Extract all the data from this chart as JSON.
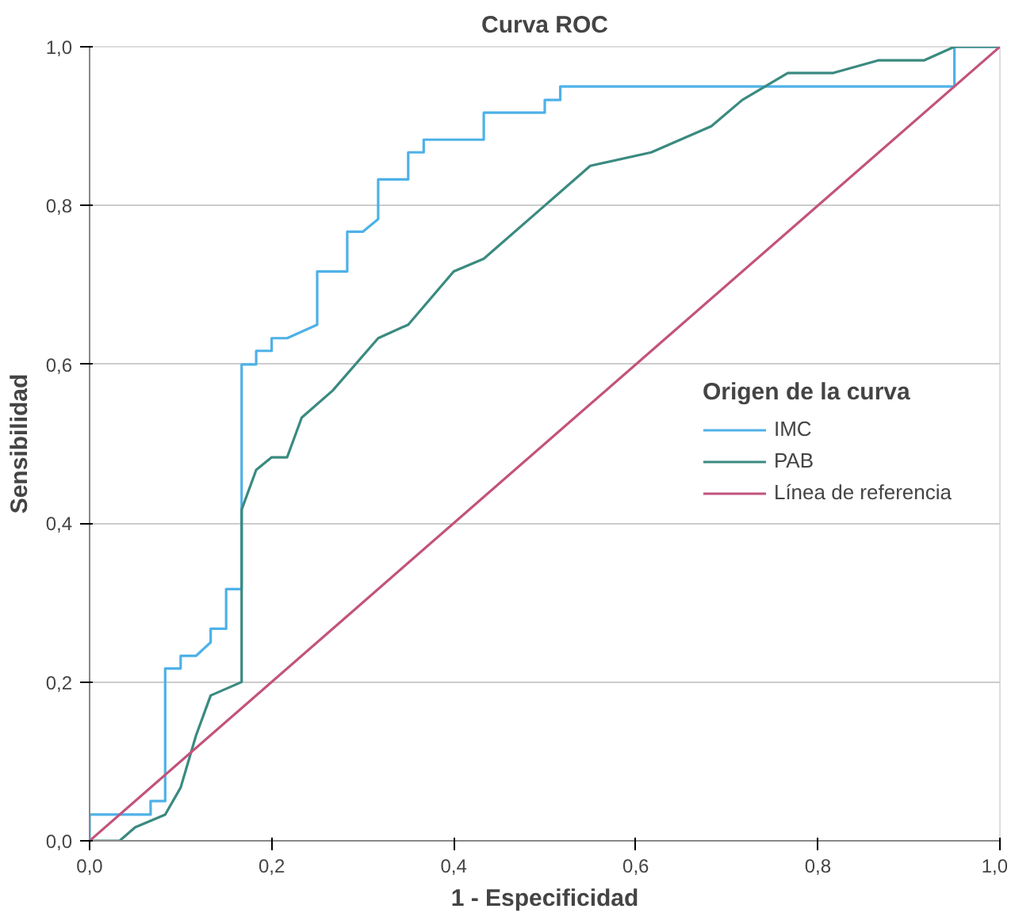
{
  "chart_data": {
    "type": "line",
    "title": "Curva ROC",
    "xlabel": "1 - Especificidad",
    "ylabel": "Sensibilidad",
    "legend_title": "Origen de la curva",
    "series": [
      {
        "name": "IMC",
        "color": "#4eb1e8",
        "x": [
          0,
          0,
          0.067,
          0.067,
          0.083,
          0.083,
          0.1,
          0.1,
          0.117,
          0.133,
          0.133,
          0.15,
          0.15,
          0.167,
          0.167,
          0.183,
          0.183,
          0.2,
          0.2,
          0.217,
          0.25,
          0.25,
          0.283,
          0.283,
          0.3,
          0.317,
          0.317,
          0.35,
          0.35,
          0.367,
          0.367,
          0.433,
          0.433,
          0.5,
          0.5,
          0.517,
          0.517,
          0.95,
          0.95,
          1.0
        ],
        "values": [
          0,
          0.033,
          0.033,
          0.05,
          0.05,
          0.217,
          0.217,
          0.233,
          0.233,
          0.25,
          0.267,
          0.267,
          0.317,
          0.317,
          0.6,
          0.6,
          0.617,
          0.617,
          0.633,
          0.633,
          0.65,
          0.717,
          0.717,
          0.767,
          0.767,
          0.783,
          0.833,
          0.833,
          0.867,
          0.867,
          0.883,
          0.883,
          0.917,
          0.917,
          0.933,
          0.933,
          0.95,
          0.95,
          1.0,
          1.0
        ]
      },
      {
        "name": "PAB",
        "color": "#3a8a80",
        "x": [
          0,
          0.033,
          0.05,
          0.083,
          0.1,
          0.117,
          0.133,
          0.167,
          0.167,
          0.183,
          0.2,
          0.217,
          0.233,
          0.267,
          0.317,
          0.35,
          0.4,
          0.433,
          0.5,
          0.55,
          0.617,
          0.683,
          0.717,
          0.767,
          0.817,
          0.867,
          0.917,
          0.95,
          1.0
        ],
        "values": [
          0,
          0,
          0.017,
          0.033,
          0.067,
          0.133,
          0.183,
          0.2,
          0.417,
          0.467,
          0.483,
          0.483,
          0.533,
          0.567,
          0.633,
          0.65,
          0.717,
          0.733,
          0.8,
          0.85,
          0.867,
          0.9,
          0.933,
          0.967,
          0.967,
          0.983,
          0.983,
          1.0,
          1.0
        ]
      },
      {
        "name": "Línea de referencia",
        "color": "#c2537c",
        "x": [
          0,
          1
        ],
        "values": [
          0,
          1
        ]
      }
    ],
    "xlim": [
      0,
      1
    ],
    "ylim": [
      0,
      1
    ],
    "xticks": [
      {
        "value": 0,
        "label": "0,0"
      },
      {
        "value": 0.2,
        "label": "0,2"
      },
      {
        "value": 0.4,
        "label": "0,4"
      },
      {
        "value": 0.6,
        "label": "0,6"
      },
      {
        "value": 0.8,
        "label": "0,8"
      },
      {
        "value": 1,
        "label": "1,0"
      }
    ],
    "yticks": [
      {
        "value": 0,
        "label": "0,0"
      },
      {
        "value": 0.2,
        "label": "0,2"
      },
      {
        "value": 0.4,
        "label": "0,4"
      },
      {
        "value": 0.6,
        "label": "0,6"
      },
      {
        "value": 0.8,
        "label": "0,8"
      },
      {
        "value": 1,
        "label": "1,0"
      }
    ],
    "grid": "y",
    "legend": "center right",
    "marker": "none",
    "line_style": "solid"
  }
}
